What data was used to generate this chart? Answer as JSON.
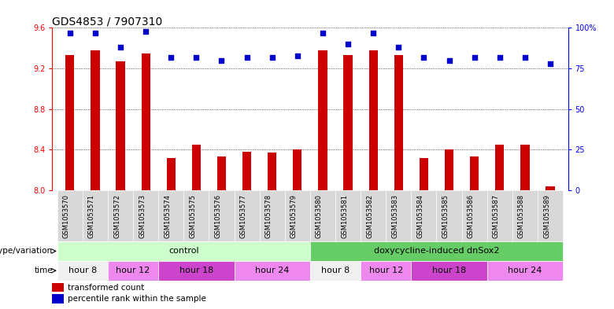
{
  "title": "GDS4853 / 7907310",
  "samples": [
    "GSM1053570",
    "GSM1053571",
    "GSM1053572",
    "GSM1053573",
    "GSM1053574",
    "GSM1053575",
    "GSM1053576",
    "GSM1053577",
    "GSM1053578",
    "GSM1053579",
    "GSM1053580",
    "GSM1053581",
    "GSM1053582",
    "GSM1053583",
    "GSM1053584",
    "GSM1053585",
    "GSM1053586",
    "GSM1053587",
    "GSM1053588",
    "GSM1053589"
  ],
  "red_values": [
    9.33,
    9.38,
    9.27,
    9.35,
    8.32,
    8.45,
    8.33,
    8.38,
    8.37,
    8.4,
    9.38,
    9.33,
    9.38,
    9.33,
    8.32,
    8.4,
    8.33,
    8.45,
    8.45,
    8.04
  ],
  "blue_values": [
    97,
    97,
    88,
    98,
    82,
    82,
    80,
    82,
    82,
    83,
    97,
    90,
    97,
    88,
    82,
    80,
    82,
    82,
    82,
    78
  ],
  "ylim_left": [
    8.0,
    9.6
  ],
  "ylim_right": [
    0,
    100
  ],
  "yticks_left": [
    8.0,
    8.4,
    8.8,
    9.2,
    9.6
  ],
  "yticks_right": [
    0,
    25,
    50,
    75,
    100
  ],
  "bar_color": "#cc0000",
  "dot_color": "#0000cc",
  "bar_bottom": 8.0,
  "genotype_groups": [
    {
      "label": "control",
      "start": 0,
      "end": 10,
      "color": "#ccffcc"
    },
    {
      "label": "doxycycline-induced dnSox2",
      "start": 10,
      "end": 20,
      "color": "#66cc66"
    }
  ],
  "time_groups": [
    {
      "label": "hour 8",
      "start": 0,
      "end": 2,
      "color": "#f0f0f0"
    },
    {
      "label": "hour 12",
      "start": 2,
      "end": 4,
      "color": "#ee88ee"
    },
    {
      "label": "hour 18",
      "start": 4,
      "end": 7,
      "color": "#cc44cc"
    },
    {
      "label": "hour 24",
      "start": 7,
      "end": 10,
      "color": "#ee88ee"
    },
    {
      "label": "hour 8",
      "start": 10,
      "end": 12,
      "color": "#f0f0f0"
    },
    {
      "label": "hour 12",
      "start": 12,
      "end": 14,
      "color": "#ee88ee"
    },
    {
      "label": "hour 18",
      "start": 14,
      "end": 17,
      "color": "#cc44cc"
    },
    {
      "label": "hour 24",
      "start": 17,
      "end": 20,
      "color": "#ee88ee"
    }
  ],
  "legend_red": "transformed count",
  "legend_blue": "percentile rank within the sample",
  "genotype_label": "genotype/variation",
  "time_label": "time",
  "title_fontsize": 10,
  "tick_fontsize": 7,
  "annotation_fontsize": 8,
  "sample_fontsize": 6
}
